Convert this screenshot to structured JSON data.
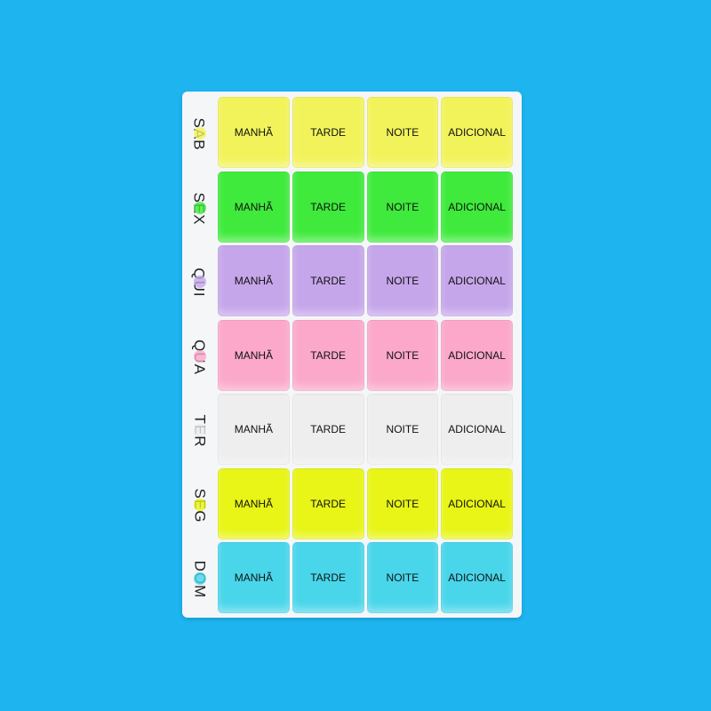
{
  "background_color": "#1db4ef",
  "slots": [
    "MANHÃ",
    "TARDE",
    "NOITE",
    "ADICIONAL"
  ],
  "days": [
    {
      "label": "SAB",
      "color": "#f2f35a"
    },
    {
      "label": "SEX",
      "color": "#3fea3c"
    },
    {
      "label": "QUI",
      "color": "#c6a6ea"
    },
    {
      "label": "QUA",
      "color": "#fba8cb"
    },
    {
      "label": "TER",
      "color": "#eeeeee"
    },
    {
      "label": "SEG",
      "color": "#e8f516"
    },
    {
      "label": "DOM",
      "color": "#49d6ea"
    }
  ]
}
